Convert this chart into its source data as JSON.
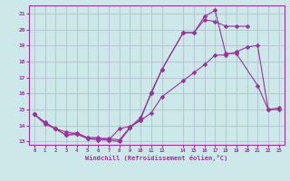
{
  "xlabel": "Windchill (Refroidissement éolien,°C)",
  "bg_color": "#cce8e8",
  "grid_color": "#b0b8cc",
  "line_color": "#993399",
  "line1_x": [
    0,
    1,
    2,
    3,
    4,
    5,
    6,
    7,
    8,
    9,
    10,
    11,
    12,
    14,
    15,
    16,
    17,
    18,
    19,
    20
  ],
  "line1_y": [
    14.7,
    14.2,
    13.8,
    13.6,
    13.5,
    13.2,
    13.2,
    13.2,
    13.1,
    13.9,
    14.5,
    16.0,
    17.5,
    19.8,
    19.8,
    20.6,
    20.5,
    20.2,
    20.2,
    20.2
  ],
  "line2_x": [
    0,
    1,
    2,
    3,
    4,
    5,
    6,
    7,
    8,
    9,
    10,
    11,
    12,
    14,
    15,
    16,
    17,
    18,
    19,
    21,
    22,
    23
  ],
  "line2_y": [
    14.7,
    14.2,
    13.8,
    13.4,
    13.55,
    13.25,
    13.25,
    13.1,
    13.0,
    13.85,
    14.4,
    16.1,
    17.5,
    19.8,
    19.8,
    20.8,
    21.2,
    18.5,
    18.5,
    16.5,
    15.0,
    15.1
  ],
  "line3_x": [
    0,
    1,
    2,
    3,
    4,
    5,
    6,
    7,
    8,
    9,
    10,
    11,
    12,
    14,
    15,
    16,
    17,
    18,
    19,
    20,
    21,
    22,
    23
  ],
  "line3_y": [
    14.7,
    14.1,
    13.8,
    13.4,
    13.45,
    13.2,
    13.1,
    13.1,
    13.8,
    13.95,
    14.3,
    14.8,
    15.8,
    16.8,
    17.3,
    17.8,
    18.4,
    18.4,
    18.6,
    18.9,
    19.0,
    15.0,
    15.0
  ],
  "xlim": [
    -0.5,
    23.5
  ],
  "ylim": [
    12.8,
    21.5
  ],
  "xticks": [
    0,
    1,
    2,
    3,
    4,
    5,
    6,
    7,
    8,
    9,
    10,
    11,
    12,
    14,
    15,
    16,
    17,
    18,
    19,
    20,
    21,
    22,
    23
  ],
  "yticks": [
    13,
    14,
    15,
    16,
    17,
    18,
    19,
    20,
    21
  ],
  "marker": "D",
  "markersize": 2.5,
  "linewidth": 0.8
}
